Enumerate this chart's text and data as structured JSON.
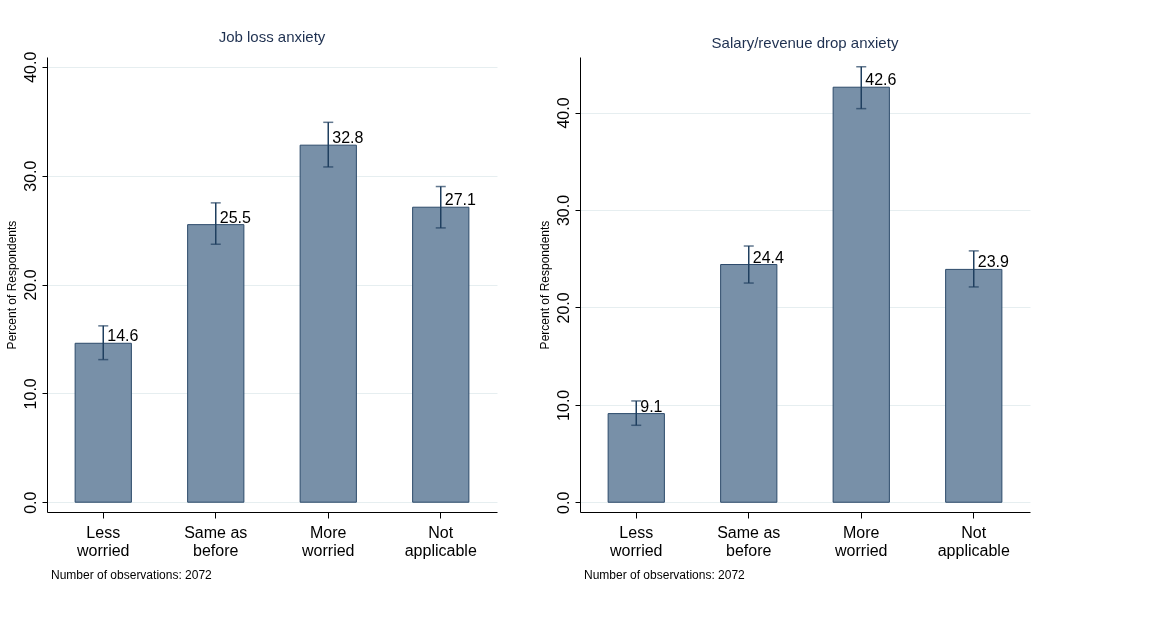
{
  "chart_data": [
    {
      "type": "bar",
      "title": "Job loss anxiety",
      "ylabel": "Percent of Respondents",
      "categories": [
        "Less worried",
        "Same as before",
        "More worried",
        "Not applicable"
      ],
      "values": [
        14.6,
        25.5,
        32.8,
        27.1
      ],
      "color": "#7890a8",
      "errors": [
        [
          13.1,
          16.2
        ],
        [
          23.7,
          27.5
        ],
        [
          30.8,
          34.9
        ],
        [
          25.2,
          29.0
        ]
      ],
      "ylim": [
        -0.9,
        40.9
      ],
      "yticks": [
        {
          "value": 0,
          "label": "0.0"
        },
        {
          "value": 10,
          "label": "10.0"
        },
        {
          "value": 20,
          "label": "20.0"
        },
        {
          "value": 30,
          "label": "30.0"
        },
        {
          "value": 40,
          "label": "40.0"
        }
      ],
      "grid": "y",
      "data_labels": true,
      "annotations": [
        "Number of observations: 2072"
      ]
    },
    {
      "type": "bar",
      "title": "Salary/revenue drop anxiety",
      "ylabel": "Percent of Respondents",
      "categories": [
        "Less worried",
        "Same as before",
        "More worried",
        "Not applicable"
      ],
      "values": [
        9.1,
        24.4,
        42.6,
        23.9
      ],
      "color": "#7890a8",
      "errors": [
        [
          7.9,
          10.4
        ],
        [
          22.5,
          26.3
        ],
        [
          40.4,
          44.7
        ],
        [
          22.1,
          25.8
        ]
      ],
      "ylim": [
        -1.0,
        45.7
      ],
      "yticks": [
        {
          "value": 0,
          "label": "0.0"
        },
        {
          "value": 10,
          "label": "10.0"
        },
        {
          "value": 20,
          "label": "20.0"
        },
        {
          "value": 30,
          "label": "30.0"
        },
        {
          "value": 40,
          "label": "40.0"
        }
      ],
      "grid": "y",
      "data_labels": true,
      "annotations": [
        "Number of observations: 2072"
      ]
    }
  ]
}
